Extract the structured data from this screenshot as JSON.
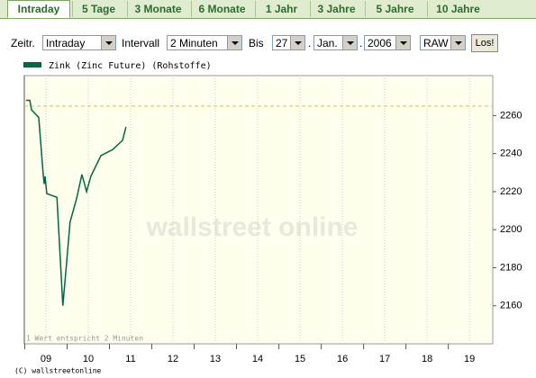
{
  "tabs": [
    "Intraday",
    "5 Tage",
    "3 Monate",
    "6 Monate",
    "1 Jahr",
    "3 Jahre",
    "5 Jahre",
    "10 Jahre"
  ],
  "active_tab": "Intraday",
  "form": {
    "zeitraum_label": "Zeitr.",
    "zeitraum": "Intraday",
    "intervall_label": "Intervall",
    "intervall": "2 Minuten",
    "bis_label": "Bis",
    "day": "27",
    "separator": ".",
    "month": "Jan.",
    "year": "2006",
    "mode": "RAW",
    "button": "Los!"
  },
  "chart_data": {
    "type": "line",
    "series": [
      {
        "name": "Zink (Zinc Future) (Rohstoffe)",
        "color": "#006644",
        "x": [
          8.53,
          8.62,
          8.66,
          8.83,
          8.94,
          8.96,
          8.98,
          9.02,
          9.26,
          9.4,
          9.47,
          9.57,
          9.72,
          9.85,
          9.96,
          10.06,
          10.3,
          10.57,
          10.81,
          10.89
        ],
        "values": [
          2268,
          2268,
          2263,
          2259,
          2228,
          2224,
          2228,
          2219,
          2217,
          2160,
          2178,
          2204,
          2216,
          2229,
          2220,
          2228,
          2239,
          2242,
          2247,
          2254
        ]
      }
    ],
    "reference_line": 2265,
    "reference_color": "#e8c020",
    "xlim": [
      8.49,
      19.55
    ],
    "xticks": [
      {
        "value": 9,
        "label": "09"
      },
      10,
      11,
      12,
      13,
      14,
      15,
      16,
      17,
      18,
      19
    ],
    "ylim": [
      2140,
      2281
    ],
    "yticks": [
      2160,
      2180,
      2200,
      2220,
      2240,
      2260
    ],
    "grid": "x",
    "watermark": "wallstreet online",
    "note": "1 Wert entspricht 2 Minuten",
    "copyright": "(C) wallstreetonline"
  }
}
